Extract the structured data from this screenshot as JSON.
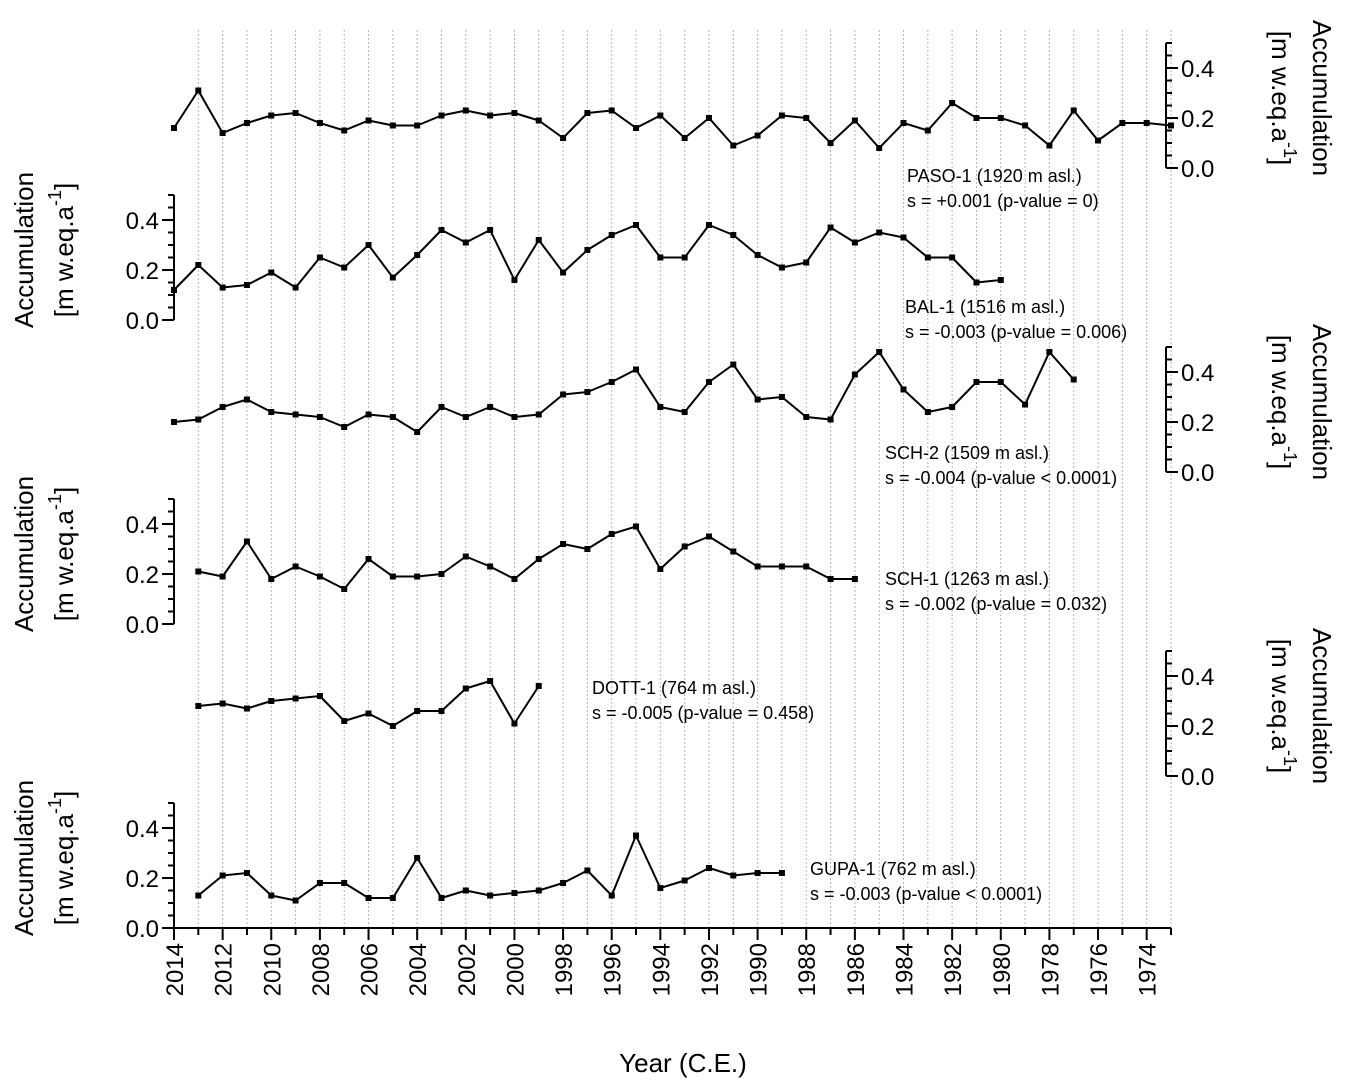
{
  "chart_data": {
    "type": "line",
    "xlabel": "Year (C.E.)",
    "x_axis": {
      "reversed": true,
      "range": [
        2014,
        1973
      ],
      "tick_labels": [
        "2014",
        "2012",
        "2010",
        "2008",
        "2006",
        "2004",
        "2002",
        "2000",
        "1998",
        "1996",
        "1994",
        "1992",
        "1990",
        "1988",
        "1986",
        "1984",
        "1982",
        "1980",
        "1978",
        "1976",
        "1974"
      ],
      "grid": "vertical dotted lines every year"
    },
    "ylabel_main": "Accumulation",
    "ylabel_unit": "[m w.eq.a",
    "ylabel_exp": "-1",
    "ylabel_close": "]",
    "y_axis": {
      "range": [
        0.0,
        0.5
      ],
      "tick_labels": [
        "0.0",
        "0.2",
        "0.4"
      ]
    },
    "series": [
      {
        "name": "PASO-1 (1920 m asl.)",
        "stat": "s = +0.001 (p-value = 0)",
        "axis_side": "right",
        "x": [
          2014,
          2013,
          2012,
          2011,
          2010,
          2009,
          2008,
          2007,
          2006,
          2005,
          2004,
          2003,
          2002,
          2001,
          2000,
          1999,
          1998,
          1997,
          1996,
          1995,
          1994,
          1993,
          1992,
          1991,
          1990,
          1989,
          1988,
          1987,
          1986,
          1985,
          1984,
          1983,
          1982,
          1981,
          1980,
          1979,
          1978,
          1977,
          1976,
          1975,
          1974,
          1973
        ],
        "values": [
          0.16,
          0.31,
          0.14,
          0.18,
          0.21,
          0.22,
          0.18,
          0.15,
          0.19,
          0.17,
          0.17,
          0.21,
          0.23,
          0.21,
          0.22,
          0.19,
          0.12,
          0.22,
          0.23,
          0.16,
          0.21,
          0.12,
          0.2,
          0.09,
          0.13,
          0.21,
          0.2,
          0.1,
          0.19,
          0.08,
          0.18,
          0.15,
          0.26,
          0.2,
          0.2,
          0.17,
          0.09,
          0.23,
          0.11,
          0.18,
          0.18,
          0.17
        ]
      },
      {
        "name": "BAL-1 (1516 m asl.)",
        "stat": "s = -0.003 (p-value = 0.006)",
        "axis_side": "left",
        "x": [
          2014,
          2013,
          2012,
          2011,
          2010,
          2009,
          2008,
          2007,
          2006,
          2005,
          2004,
          2003,
          2002,
          2001,
          2000,
          1999,
          1998,
          1997,
          1996,
          1995,
          1994,
          1993,
          1992,
          1991,
          1990,
          1989,
          1988,
          1987,
          1986,
          1985,
          1984,
          1983,
          1982,
          1981,
          1980
        ],
        "values": [
          0.12,
          0.22,
          0.13,
          0.14,
          0.19,
          0.13,
          0.25,
          0.21,
          0.3,
          0.17,
          0.26,
          0.36,
          0.31,
          0.36,
          0.16,
          0.32,
          0.19,
          0.28,
          0.34,
          0.38,
          0.25,
          0.25,
          0.38,
          0.34,
          0.26,
          0.21,
          0.23,
          0.37,
          0.31,
          0.35,
          0.33,
          0.25,
          0.25,
          0.15,
          0.16
        ]
      },
      {
        "name": "SCH-2 (1509 m asl.)",
        "stat": "s = -0.004 (p-value < 0.0001)",
        "axis_side": "right",
        "x": [
          2014,
          2013,
          2012,
          2011,
          2010,
          2009,
          2008,
          2007,
          2006,
          2005,
          2004,
          2003,
          2002,
          2001,
          2000,
          1999,
          1998,
          1997,
          1996,
          1995,
          1994,
          1993,
          1992,
          1991,
          1990,
          1989,
          1988,
          1987,
          1986,
          1985,
          1984,
          1983,
          1982,
          1981,
          1980,
          1979,
          1978,
          1977
        ],
        "values": [
          0.2,
          0.21,
          0.26,
          0.29,
          0.24,
          0.23,
          0.22,
          0.18,
          0.23,
          0.22,
          0.16,
          0.26,
          0.22,
          0.26,
          0.22,
          0.23,
          0.31,
          0.32,
          0.36,
          0.41,
          0.26,
          0.24,
          0.36,
          0.43,
          0.29,
          0.3,
          0.22,
          0.21,
          0.39,
          0.48,
          0.33,
          0.24,
          0.26,
          0.36,
          0.36,
          0.27,
          0.48,
          0.37
        ]
      },
      {
        "name": "SCH-1 (1263 m asl.)",
        "stat": "s = -0.002 (p-value = 0.032)",
        "axis_side": "left",
        "x": [
          2013,
          2012,
          2011,
          2010,
          2009,
          2008,
          2007,
          2006,
          2005,
          2004,
          2003,
          2002,
          2001,
          2000,
          1999,
          1998,
          1997,
          1996,
          1995,
          1994,
          1993,
          1992,
          1991,
          1990,
          1989,
          1988,
          1987,
          1986
        ],
        "values": [
          0.21,
          0.19,
          0.33,
          0.18,
          0.23,
          0.19,
          0.14,
          0.26,
          0.19,
          0.19,
          0.2,
          0.27,
          0.23,
          0.18,
          0.26,
          0.32,
          0.3,
          0.36,
          0.39,
          0.22,
          0.31,
          0.35,
          0.29,
          0.23,
          0.23,
          0.23,
          0.18,
          0.18
        ]
      },
      {
        "name": "DOTT-1 (764 m asl.)",
        "stat": "s = -0.005 (p-value = 0.458)",
        "axis_side": "right",
        "x": [
          2013,
          2012,
          2011,
          2010,
          2009,
          2008,
          2007,
          2006,
          2005,
          2004,
          2003,
          2002,
          2001,
          2000,
          1999
        ],
        "values": [
          0.28,
          0.29,
          0.27,
          0.3,
          0.31,
          0.32,
          0.22,
          0.25,
          0.2,
          0.26,
          0.26,
          0.35,
          0.38,
          0.21,
          0.36
        ]
      },
      {
        "name": "GUPA-1 (762 m asl.)",
        "stat": "s = -0.003 (p-value < 0.0001)",
        "axis_side": "left",
        "x": [
          2013,
          2012,
          2011,
          2010,
          2009,
          2008,
          2007,
          2006,
          2005,
          2004,
          2003,
          2002,
          2001,
          2000,
          1999,
          1998,
          1997,
          1996,
          1995,
          1994,
          1993,
          1992,
          1991,
          1990,
          1989
        ],
        "values": [
          0.13,
          0.21,
          0.22,
          0.13,
          0.11,
          0.18,
          0.18,
          0.12,
          0.12,
          0.28,
          0.12,
          0.15,
          0.13,
          0.14,
          0.15,
          0.18,
          0.23,
          0.13,
          0.37,
          0.16,
          0.19,
          0.24,
          0.21,
          0.22,
          0.22
        ]
      }
    ]
  }
}
